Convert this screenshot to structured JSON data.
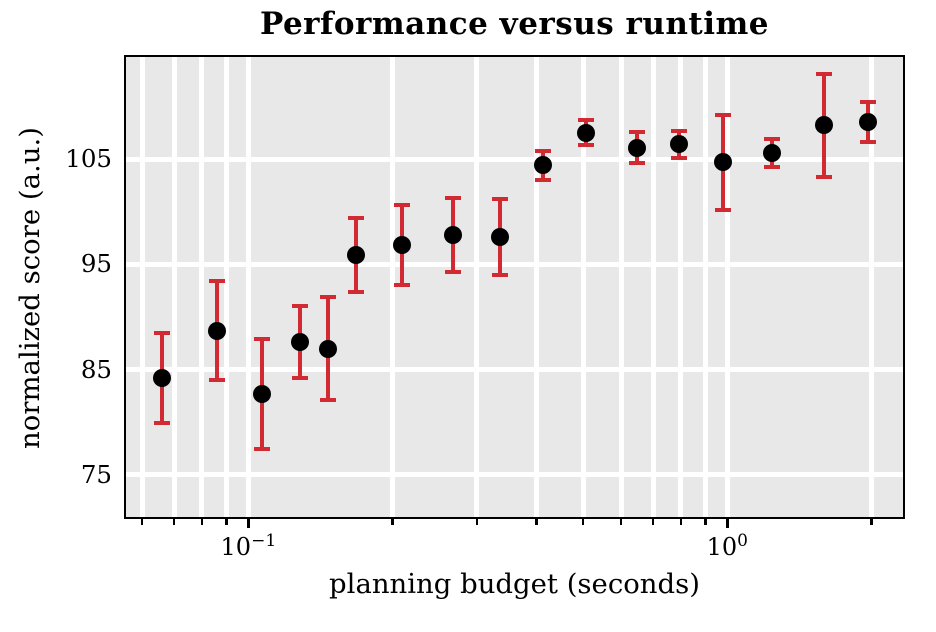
{
  "chart_data": {
    "type": "scatter",
    "error_bars": true,
    "title": "Performance versus runtime",
    "xlabel": "planning budget (seconds)",
    "ylabel": "normalized score (a.u.)",
    "x_scale": "log",
    "y_scale": "linear",
    "xlim": [
      0.055,
      2.35
    ],
    "ylim": [
      70.8,
      114.9
    ],
    "grid": true,
    "legend": false,
    "series": [
      {
        "name": "performance",
        "x": [
          0.066,
          0.086,
          0.107,
          0.128,
          0.147,
          0.168,
          0.209,
          0.267,
          0.335,
          0.412,
          0.508,
          0.649,
          0.794,
          0.981,
          1.24,
          1.59,
          1.97
        ],
        "y": [
          84.2,
          88.7,
          82.7,
          87.6,
          87.0,
          95.9,
          96.8,
          97.8,
          97.6,
          104.4,
          107.5,
          106.1,
          106.4,
          104.7,
          105.6,
          108.2,
          108.5
        ],
        "yerr": [
          4.3,
          4.7,
          5.2,
          3.4,
          4.9,
          3.5,
          3.8,
          3.5,
          3.6,
          1.4,
          1.2,
          1.5,
          1.3,
          4.5,
          1.3,
          4.9,
          1.9
        ]
      }
    ],
    "y_ticks": [
      {
        "value": 105,
        "label": "105"
      },
      {
        "value": 95,
        "label": "95"
      },
      {
        "value": 85,
        "label": "85"
      },
      {
        "value": 75,
        "label": "75"
      }
    ],
    "x_major_ticks": [
      {
        "value": 0.1,
        "label_base": "10",
        "label_exp": "−1"
      },
      {
        "value": 1.0,
        "label_base": "10",
        "label_exp": "0"
      }
    ],
    "x_minor_ticks": [
      0.06,
      0.07,
      0.08,
      0.09,
      0.2,
      0.3,
      0.4,
      0.5,
      0.6,
      0.7,
      0.8,
      0.9,
      2.0
    ],
    "colors": {
      "error_bar": "#d12a33",
      "marker": "#000000",
      "plot_background": "#e8e8e8",
      "gridline": "#ffffff",
      "spine": "#000000",
      "text": "#000000"
    }
  }
}
